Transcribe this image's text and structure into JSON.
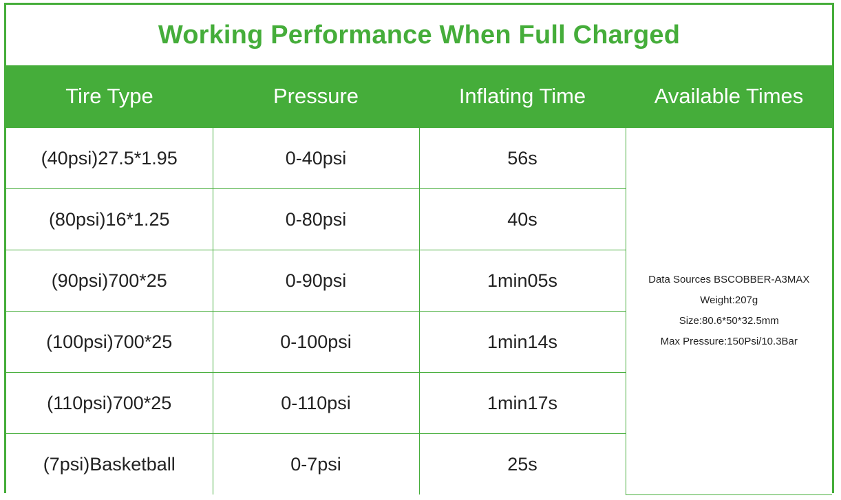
{
  "title": "Working Performance When Full Charged",
  "colors": {
    "accent": "#45ad3a",
    "header_text": "#ffffff",
    "body_text": "#222222",
    "background": "#ffffff"
  },
  "table": {
    "headers": [
      "Tire Type",
      "Pressure",
      "Inflating Time",
      "Available Times"
    ],
    "rows": [
      {
        "tire_type": "(40psi)27.5*1.95",
        "pressure": "0-40psi",
        "inflating_time": "56s"
      },
      {
        "tire_type": "(80psi)16*1.25",
        "pressure": "0-80psi",
        "inflating_time": "40s"
      },
      {
        "tire_type": "(90psi)700*25",
        "pressure": "0-90psi",
        "inflating_time": "1min05s"
      },
      {
        "tire_type": "(100psi)700*25",
        "pressure": "0-100psi",
        "inflating_time": "1min14s"
      },
      {
        "tire_type": "(110psi)700*25",
        "pressure": "0-110psi",
        "inflating_time": "1min17s"
      },
      {
        "tire_type": "(7psi)Basketball",
        "pressure": "0-7psi",
        "inflating_time": "25s"
      }
    ],
    "available_times_info": [
      "Data Sources BSCOBBER-A3MAX",
      "Weight:207g",
      "Size:80.6*50*32.5mm",
      "Max Pressure:150Psi/10.3Bar"
    ]
  }
}
